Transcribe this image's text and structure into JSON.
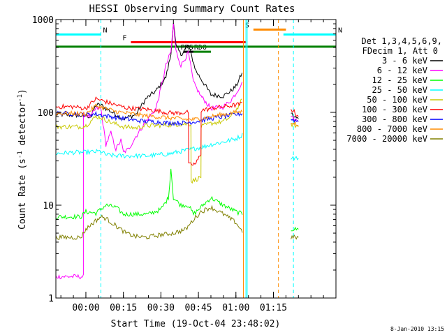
{
  "chart_data": {
    "type": "line",
    "title": "HESSI Observing Summary Count Rates",
    "xlabel": "Start Time (19-Oct-04 23:48:02)",
    "ylabel_main": "Count Rate (s",
    "ylabel_sup1": "-1",
    "ylabel_mid": " detector",
    "ylabel_sup2": "-1",
    "ylabel_end": ")",
    "y_scale": "log",
    "ylim": [
      1,
      1000
    ],
    "xlim_minutes": [
      -12,
      100
    ],
    "x_ticks": [
      {
        "m": 0,
        "label": "00:00"
      },
      {
        "m": 15,
        "label": "00:15"
      },
      {
        "m": 30,
        "label": "00:30"
      },
      {
        "m": 45,
        "label": "00:45"
      },
      {
        "m": 60,
        "label": "01:00"
      },
      {
        "m": 75,
        "label": "01:15"
      }
    ],
    "y_ticks": [
      {
        "v": 1,
        "label": "1"
      },
      {
        "v": 10,
        "label": "10"
      },
      {
        "v": 100,
        "label": "100"
      },
      {
        "v": 1000,
        "label": "1000"
      }
    ],
    "legend": {
      "position": "right",
      "header1": "Det 1,3,4,5,6,9,",
      "header2": "FDecim 1, Att 0",
      "entries": [
        {
          "label": "3 - 6 keV",
          "color": "#000000"
        },
        {
          "label": "6 - 12 keV",
          "color": "#ff00ff"
        },
        {
          "label": "12 - 25 keV",
          "color": "#00ff00"
        },
        {
          "label": "25 - 50 keV",
          "color": "#00ffff"
        },
        {
          "label": "50 - 100 keV",
          "color": "#c8c800"
        },
        {
          "label": "100 - 300 keV",
          "color": "#ff0000"
        },
        {
          "label": "300 - 800 keV",
          "color": "#0000ff"
        },
        {
          "label": "800 - 7000 keV",
          "color": "#ff8c00"
        },
        {
          "label": "7000 - 20000 keV",
          "color": "#808000"
        }
      ]
    },
    "flag_bars": [
      {
        "label": "N",
        "color": "#00ffff",
        "start": -12,
        "end": 6,
        "level": 690
      },
      {
        "label": "N",
        "color": "#00ffff",
        "start": 79,
        "end": 100,
        "level": 690
      },
      {
        "label": "S",
        "color": "#ff8c00",
        "start": 67,
        "end": 80,
        "level": 780
      },
      {
        "label": "F",
        "color": "#ff0000",
        "start": 18,
        "end": 64,
        "level": 570
      },
      {
        "label": "RDO",
        "color": "#008000",
        "start": 43,
        "end": 50,
        "level": 450
      },
      {
        "label": "",
        "color": "#008000",
        "start": -12,
        "end": 100,
        "level": 510
      },
      {
        "label": "PRS",
        "color": "#000000",
        "start": 39,
        "end": 43,
        "level": 450
      }
    ],
    "vlines": [
      {
        "m": 6,
        "color": "#00ffff",
        "dash": true
      },
      {
        "m": 63,
        "color": "#ff8c00",
        "dash": false
      },
      {
        "m": 64,
        "color": "#00ffff",
        "dash": false
      },
      {
        "m": 64.5,
        "color": "#00ffff",
        "dash": false
      },
      {
        "m": 77,
        "color": "#ff8c00",
        "dash": true
      },
      {
        "m": 83,
        "color": "#00ffff",
        "dash": true
      }
    ],
    "series": [
      {
        "name": "3 - 6 keV",
        "color": "#000000",
        "points": [
          [
            -12,
            95
          ],
          [
            0,
            92
          ],
          [
            2,
            90
          ],
          [
            4,
            120
          ],
          [
            6,
            120
          ],
          [
            8,
            110
          ],
          [
            12,
            95
          ],
          [
            15,
            85
          ],
          [
            20,
            95
          ],
          [
            24,
            140
          ],
          [
            28,
            170
          ],
          [
            30,
            200
          ],
          [
            32,
            240
          ],
          [
            34,
            420
          ],
          [
            35,
            950
          ],
          [
            36,
            520
          ],
          [
            38,
            420
          ],
          [
            41,
            530
          ],
          [
            44,
            280
          ],
          [
            48,
            190
          ],
          [
            50,
            155
          ],
          [
            55,
            150
          ],
          [
            58,
            170
          ],
          [
            60,
            190
          ],
          [
            62,
            250
          ],
          [
            63,
            270
          ],
          [
            63.01,
            null
          ],
          [
            82,
            100
          ],
          [
            83,
            90
          ],
          [
            85,
            85
          ]
        ]
      },
      {
        "name": "6 - 12 keV",
        "color": "#ff00ff",
        "points": [
          [
            -12,
            1.7
          ],
          [
            -1,
            1.7
          ],
          [
            -1,
            95
          ],
          [
            2,
            90
          ],
          [
            4,
            110
          ],
          [
            6,
            110
          ],
          [
            8,
            45
          ],
          [
            10,
            60
          ],
          [
            12,
            40
          ],
          [
            14,
            50
          ],
          [
            15,
            37
          ],
          [
            17,
            40
          ],
          [
            20,
            55
          ],
          [
            24,
            80
          ],
          [
            28,
            110
          ],
          [
            30,
            180
          ],
          [
            32,
            320
          ],
          [
            34,
            450
          ],
          [
            35,
            900
          ],
          [
            36,
            460
          ],
          [
            38,
            320
          ],
          [
            41,
            440
          ],
          [
            43,
            210
          ],
          [
            46,
            150
          ],
          [
            50,
            110
          ],
          [
            55,
            115
          ],
          [
            58,
            135
          ],
          [
            60,
            160
          ],
          [
            62,
            200
          ],
          [
            63,
            210
          ],
          [
            63.01,
            null
          ],
          [
            82,
            95
          ],
          [
            83,
            85
          ],
          [
            85,
            80
          ]
        ]
      },
      {
        "name": "12 - 25 keV",
        "color": "#00ff00",
        "points": [
          [
            -12,
            7.5
          ],
          [
            -2,
            7.5
          ],
          [
            0,
            8.5
          ],
          [
            4,
            8.2
          ],
          [
            6,
            9
          ],
          [
            8,
            10
          ],
          [
            12,
            9.5
          ],
          [
            15,
            8
          ],
          [
            20,
            8
          ],
          [
            25,
            8
          ],
          [
            30,
            9
          ],
          [
            33,
            12
          ],
          [
            34,
            25
          ],
          [
            35,
            12
          ],
          [
            38,
            10
          ],
          [
            41,
            10
          ],
          [
            43,
            8
          ],
          [
            46,
            9.5
          ],
          [
            50,
            12
          ],
          [
            55,
            10
          ],
          [
            60,
            8.5
          ],
          [
            63,
            8
          ],
          [
            63.01,
            null
          ],
          [
            82,
            5.5
          ],
          [
            85,
            5.5
          ]
        ]
      },
      {
        "name": "25 - 50 keV",
        "color": "#00ffff",
        "points": [
          [
            -12,
            36
          ],
          [
            -5,
            37
          ],
          [
            0,
            37
          ],
          [
            6,
            38
          ],
          [
            8,
            35
          ],
          [
            12,
            34
          ],
          [
            18,
            34
          ],
          [
            24,
            34
          ],
          [
            30,
            35
          ],
          [
            34,
            36
          ],
          [
            38,
            38
          ],
          [
            42,
            40
          ],
          [
            46,
            42
          ],
          [
            50,
            45
          ],
          [
            55,
            48
          ],
          [
            60,
            52
          ],
          [
            63,
            58
          ],
          [
            63.01,
            null
          ],
          [
            82,
            33
          ],
          [
            85,
            32
          ]
        ]
      },
      {
        "name": "50 - 100 keV",
        "color": "#c8c800",
        "points": [
          [
            -12,
            70
          ],
          [
            -2,
            70
          ],
          [
            0,
            72
          ],
          [
            4,
            90
          ],
          [
            6,
            88
          ],
          [
            10,
            78
          ],
          [
            15,
            70
          ],
          [
            20,
            68
          ],
          [
            24,
            72
          ],
          [
            28,
            72
          ],
          [
            32,
            73
          ],
          [
            36,
            74
          ],
          [
            40,
            75
          ],
          [
            42,
            75
          ],
          [
            42.1,
            18
          ],
          [
            46,
            20
          ],
          [
            46.1,
            70
          ],
          [
            50,
            76
          ],
          [
            55,
            80
          ],
          [
            58,
            90
          ],
          [
            60,
            105
          ],
          [
            62,
            130
          ],
          [
            63,
            135
          ],
          [
            63.01,
            null
          ],
          [
            82,
            75
          ],
          [
            85,
            70
          ]
        ]
      },
      {
        "name": "100 - 300 keV",
        "color": "#ff0000",
        "points": [
          [
            -12,
            115
          ],
          [
            -5,
            115
          ],
          [
            0,
            110
          ],
          [
            4,
            140
          ],
          [
            8,
            130
          ],
          [
            12,
            120
          ],
          [
            16,
            112
          ],
          [
            20,
            110
          ],
          [
            24,
            108
          ],
          [
            28,
            104
          ],
          [
            32,
            100
          ],
          [
            36,
            98
          ],
          [
            40,
            100
          ],
          [
            41,
            100
          ],
          [
            41.1,
            27
          ],
          [
            44,
            28
          ],
          [
            46,
            36
          ],
          [
            46.1,
            105
          ],
          [
            50,
            110
          ],
          [
            55,
            115
          ],
          [
            60,
            120
          ],
          [
            63,
            125
          ],
          [
            63.01,
            null
          ],
          [
            82,
            110
          ],
          [
            85,
            90
          ]
        ]
      },
      {
        "name": "300 - 800 keV",
        "color": "#0000ff",
        "points": [
          [
            -12,
            98
          ],
          [
            -5,
            97
          ],
          [
            0,
            95
          ],
          [
            4,
            96
          ],
          [
            8,
            92
          ],
          [
            12,
            88
          ],
          [
            16,
            85
          ],
          [
            20,
            82
          ],
          [
            24,
            80
          ],
          [
            28,
            79
          ],
          [
            32,
            77
          ],
          [
            36,
            77
          ],
          [
            40,
            77
          ],
          [
            44,
            80
          ],
          [
            50,
            86
          ],
          [
            55,
            90
          ],
          [
            60,
            95
          ],
          [
            63,
            98
          ],
          [
            63.01,
            null
          ],
          [
            82,
            85
          ],
          [
            85,
            80
          ]
        ]
      },
      {
        "name": "800 - 7000 keV",
        "color": "#ff8c00",
        "points": [
          [
            -12,
            98
          ],
          [
            -5,
            97
          ],
          [
            0,
            96
          ],
          [
            4,
            118
          ],
          [
            8,
            110
          ],
          [
            12,
            102
          ],
          [
            16,
            98
          ],
          [
            20,
            95
          ],
          [
            24,
            92
          ],
          [
            28,
            90
          ],
          [
            32,
            88
          ],
          [
            36,
            86
          ],
          [
            40,
            84
          ],
          [
            44,
            84
          ],
          [
            48,
            88
          ],
          [
            52,
            92
          ],
          [
            56,
            96
          ],
          [
            60,
            100
          ],
          [
            63,
            102
          ],
          [
            63.01,
            null
          ],
          [
            82,
            80
          ],
          [
            85,
            72
          ]
        ]
      },
      {
        "name": "7000 - 20000 keV",
        "color": "#808000",
        "points": [
          [
            -12,
            4.5
          ],
          [
            -2,
            4.5
          ],
          [
            0,
            5.5
          ],
          [
            3,
            6.5
          ],
          [
            6,
            7.5
          ],
          [
            8,
            7.2
          ],
          [
            12,
            6
          ],
          [
            16,
            5
          ],
          [
            20,
            4.6
          ],
          [
            24,
            4.5
          ],
          [
            30,
            4.8
          ],
          [
            35,
            5
          ],
          [
            40,
            5.5
          ],
          [
            43,
            7
          ],
          [
            46,
            8.5
          ],
          [
            50,
            9.5
          ],
          [
            55,
            8
          ],
          [
            60,
            6.5
          ],
          [
            63,
            5
          ],
          [
            63.01,
            null
          ],
          [
            82,
            4.5
          ],
          [
            85,
            4.5
          ]
        ]
      }
    ]
  },
  "footer": {
    "timestamp": "8-Jan-2010 13:15"
  }
}
